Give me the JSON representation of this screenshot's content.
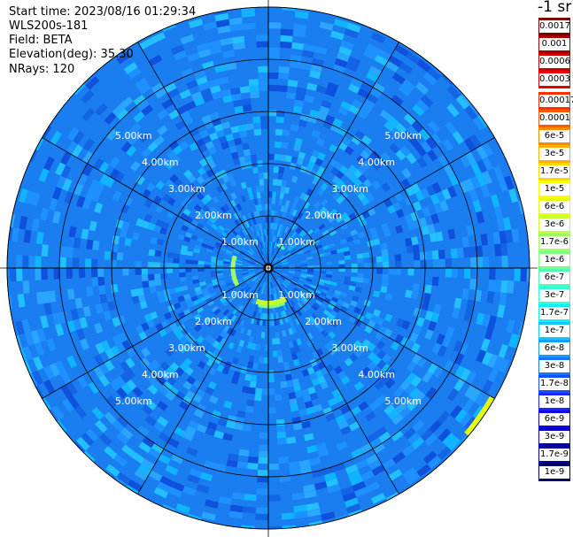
{
  "info": {
    "start_time": "Start time: 2023/08/16 01:29:34",
    "instrument": "WLS200s-181",
    "field": "Field: BETA",
    "elevation": "Elevation(deg): 35.30",
    "nrays": "NRays: 120"
  },
  "colorbar": {
    "title": "-1 sr",
    "labels_top": [
      "0.0017",
      "0.001",
      "0.0006",
      "0.0003"
    ],
    "colors_top": [
      "#7a0000",
      "#a00000",
      "#c80000",
      "#e60000"
    ],
    "labels": [
      "0.00017",
      "0.0001",
      "6e-5",
      "3e-5",
      "1.7e-5",
      "1e-5",
      "6e-6",
      "3e-6",
      "1.7e-6",
      "1e-6",
      "6e-7",
      "3e-7",
      "1.7e-7",
      "1e-7",
      "6e-8",
      "3e-8",
      "1.7e-8",
      "1e-8",
      "6e-9",
      "3e-9",
      "1.7e-9",
      "1e-9"
    ],
    "colors": [
      "#ff3000",
      "#ff5a00",
      "#ff8a00",
      "#ffb000",
      "#ffd800",
      "#ffff00",
      "#e6ff10",
      "#c8ff30",
      "#a0ff60",
      "#7cff80",
      "#50ffb0",
      "#30ffd8",
      "#10f0f0",
      "#10c8ff",
      "#10a0ff",
      "#1478ff",
      "#1450ff",
      "#1428ff",
      "#1000e6",
      "#0a00c0",
      "#080096",
      "#050064"
    ]
  },
  "chart_data": {
    "type": "polar_ppi",
    "range_rings_km": [
      1,
      2,
      3,
      4,
      5
    ],
    "max_range_km": 5.05,
    "spoke_angles_deg": [
      0,
      30,
      60,
      90,
      120,
      150,
      180,
      210,
      240,
      270,
      300,
      330
    ],
    "ring_labels": {
      "1": [
        "1.00km",
        "1.00km",
        "1.00km",
        "1.00km"
      ],
      "2": [
        "2.00km",
        "2.00km",
        "2.00km",
        "2.00km"
      ],
      "3": [
        "3.00km",
        "3.00km",
        "3.00km",
        "3.00km"
      ],
      "4": [
        "4.00km",
        "4.00km",
        "4.00km",
        "4.00km"
      ],
      "5": [
        "5.00km",
        "5.00km",
        "5.00km",
        "5.00km"
      ]
    },
    "field": "BETA",
    "dominant_level": "1e-7",
    "near_range_echo_level": "1e-6"
  }
}
